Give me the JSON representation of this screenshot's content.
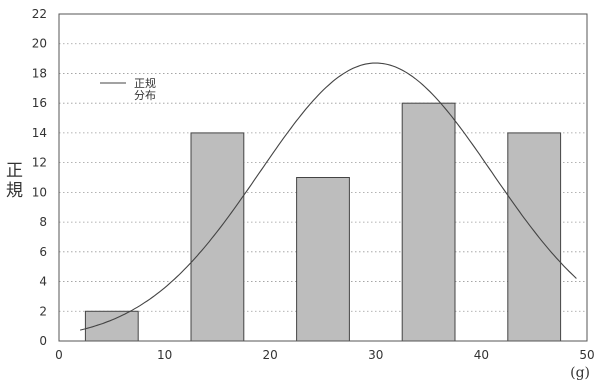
{
  "chart_data": {
    "type": "bar",
    "x_centers": [
      5,
      15,
      25,
      35,
      45
    ],
    "bar_width": 5,
    "values": [
      2,
      14,
      11,
      16,
      14
    ],
    "bar_color": "#bdbdbd",
    "curve": {
      "name": "正规分布",
      "name_lines": [
        "正规",
        "分布"
      ],
      "mean": 30,
      "sd": 11,
      "peak": 18.7,
      "x_range": [
        2,
        49
      ]
    },
    "xlim": [
      0,
      50
    ],
    "ylim": [
      0,
      22
    ],
    "x_ticks": [
      0,
      10,
      20,
      30,
      40,
      50
    ],
    "y_ticks": [
      0,
      2,
      4,
      6,
      8,
      10,
      12,
      14,
      16,
      18,
      20,
      22
    ],
    "ylabel_lines": [
      "正",
      "規"
    ],
    "xlabel": "(g)",
    "grid": "horizontal-dotted",
    "legend_position": "top-left"
  }
}
